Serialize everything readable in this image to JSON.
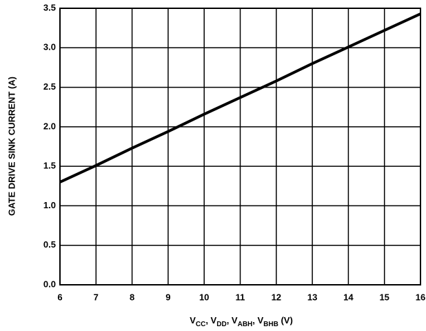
{
  "chart_data": {
    "type": "line",
    "y_label": "GATE DRIVE SINK CURRENT (A)",
    "x_label_parts": [
      "V",
      "CC",
      ", V",
      "DD",
      ", V",
      "ABH",
      ", V",
      "BHB",
      " (V)"
    ],
    "x": [
      6,
      7,
      8,
      9,
      10,
      11,
      12,
      13,
      14,
      15,
      16
    ],
    "series": [
      {
        "color": "#000000",
        "values": [
          1.3,
          1.51,
          1.73,
          1.94,
          2.16,
          2.37,
          2.58,
          2.8,
          3.01,
          3.22,
          3.43
        ]
      }
    ],
    "xlim": [
      6,
      16
    ],
    "xticks": [
      6,
      7,
      8,
      9,
      10,
      11,
      12,
      13,
      14,
      15,
      16
    ],
    "ylim": [
      0,
      3.5
    ],
    "yticks": [
      {
        "value": 0,
        "label": "0.0"
      },
      0.5,
      {
        "value": 1,
        "label": "1.0"
      },
      1.5,
      {
        "value": 2,
        "label": "2.0"
      },
      2.5,
      {
        "value": 3,
        "label": "3.0"
      },
      3.5
    ],
    "grid": true
  }
}
